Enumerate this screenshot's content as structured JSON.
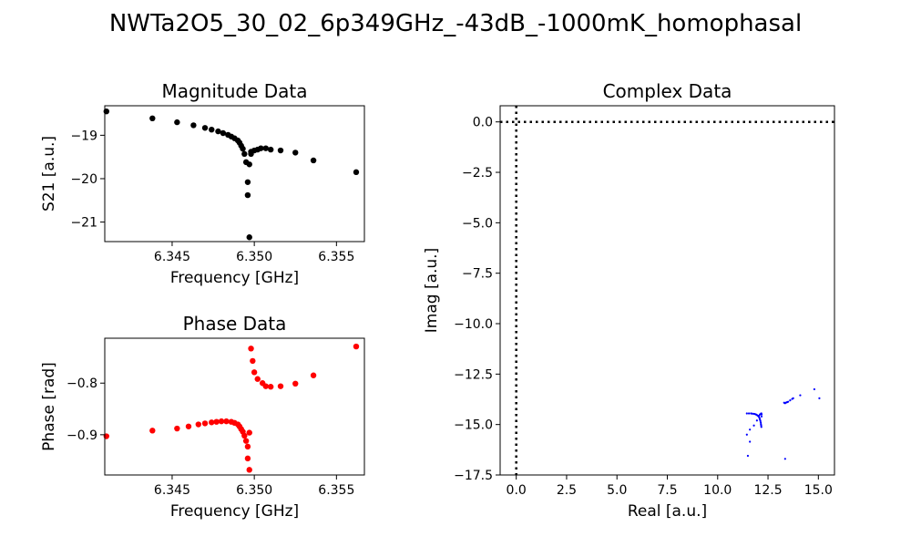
{
  "figure": {
    "title": "NWTa2O5_30_02_6p349GHz_-43dB_-1000mK_homophasal"
  },
  "chart_data": [
    {
      "id": "magnitude",
      "type": "scatter",
      "title": "Magnitude Data",
      "xlabel": "Frequency [GHz]",
      "ylabel": "S21 [a.u.]",
      "xlim": [
        6.3409,
        6.3567
      ],
      "ylim": [
        -21.45,
        -18.32
      ],
      "xticks": [
        6.345,
        6.35,
        6.355
      ],
      "xtick_labels": [
        "6.345",
        "6.350",
        "6.355"
      ],
      "yticks": [
        -19,
        -20,
        -21
      ],
      "ytick_labels": [
        "−19",
        "−20",
        "−21"
      ],
      "color": "#000000",
      "grid": false,
      "x": [
        6.341,
        6.3438,
        6.3453,
        6.3463,
        6.347,
        6.3474,
        6.3478,
        6.3481,
        6.3484,
        6.3486,
        6.3488,
        6.349,
        6.3491,
        6.3492,
        6.3493,
        6.3494,
        6.3495,
        6.3496,
        6.3496,
        6.3497,
        6.3497,
        6.3498,
        6.3498,
        6.35,
        6.3502,
        6.3504,
        6.3507,
        6.351,
        6.3516,
        6.3525,
        6.3536,
        6.3562
      ],
      "y": [
        -18.45,
        -18.61,
        -18.7,
        -18.77,
        -18.83,
        -18.87,
        -18.91,
        -18.95,
        -18.99,
        -19.03,
        -19.07,
        -19.12,
        -19.17,
        -19.24,
        -19.31,
        -19.43,
        -19.62,
        -20.08,
        -20.38,
        -21.35,
        -19.67,
        -19.43,
        -19.38,
        -19.35,
        -19.33,
        -19.3,
        -19.3,
        -19.33,
        -19.35,
        -19.4,
        -19.58,
        -19.85
      ]
    },
    {
      "id": "phase",
      "type": "scatter",
      "title": "Phase Data",
      "xlabel": "Frequency [GHz]",
      "ylabel": "Phase [rad]",
      "xlim": [
        6.3409,
        6.3567
      ],
      "ylim": [
        -0.978,
        -0.713
      ],
      "xticks": [
        6.345,
        6.35,
        6.355
      ],
      "xtick_labels": [
        "6.345",
        "6.350",
        "6.355"
      ],
      "yticks": [
        -0.8,
        -0.9
      ],
      "ytick_labels": [
        "−0.8",
        "−0.9"
      ],
      "color": "#ff0000",
      "grid": false,
      "x": [
        6.341,
        6.3438,
        6.3453,
        6.346,
        6.3466,
        6.347,
        6.3474,
        6.3477,
        6.348,
        6.3483,
        6.3486,
        6.3488,
        6.349,
        6.3491,
        6.3492,
        6.3493,
        6.3494,
        6.3495,
        6.3496,
        6.3496,
        6.3497,
        6.3497,
        6.3498,
        6.3499,
        6.35,
        6.3502,
        6.3505,
        6.3507,
        6.351,
        6.3516,
        6.3525,
        6.3536,
        6.3562
      ],
      "y": [
        -0.903,
        -0.892,
        -0.888,
        -0.884,
        -0.88,
        -0.878,
        -0.876,
        -0.875,
        -0.874,
        -0.874,
        -0.875,
        -0.877,
        -0.88,
        -0.884,
        -0.889,
        -0.894,
        -0.902,
        -0.912,
        -0.923,
        -0.946,
        -0.968,
        -0.896,
        -0.733,
        -0.757,
        -0.779,
        -0.792,
        -0.8,
        -0.806,
        -0.807,
        -0.806,
        -0.801,
        -0.785,
        -0.729
      ]
    },
    {
      "id": "complex",
      "type": "scatter",
      "title": "Complex Data",
      "xlabel": "Real [a.u.]",
      "ylabel": "Imag [a.u.]",
      "xlim": [
        -0.8,
        15.8
      ],
      "ylim": [
        -17.5,
        0.8
      ],
      "xticks": [
        0,
        2.5,
        5,
        7.5,
        10,
        12.5,
        15
      ],
      "xtick_labels": [
        "0.0",
        "2.5",
        "5.0",
        "7.5",
        "10.0",
        "12.5",
        "15.0"
      ],
      "yticks": [
        0,
        -2.5,
        -5,
        -7.5,
        -10,
        -12.5,
        -15,
        -17.5
      ],
      "ytick_labels": [
        "0.0",
        "−2.5",
        "−5.0",
        "−7.5",
        "−10.0",
        "−12.5",
        "−15.0",
        "−17.5"
      ],
      "color": "#0000ff",
      "grid": false,
      "reference_lines": {
        "x": 0,
        "y": 0,
        "style": "dotted"
      },
      "x": [
        11.45,
        11.55,
        11.65,
        11.72,
        11.8,
        11.85,
        11.9,
        11.95,
        12.0,
        12.05,
        12.08,
        12.1,
        12.12,
        12.14,
        12.15,
        12.16,
        12.17,
        12.18,
        12.18,
        12.17,
        12.15,
        12.1,
        12.05,
        11.95,
        11.8,
        11.6,
        11.45,
        11.6,
        11.5,
        13.3,
        13.35,
        13.4,
        13.45,
        13.5,
        13.6,
        13.7,
        13.75,
        14.1,
        14.8,
        15.05,
        13.35
      ],
      "y": [
        -14.45,
        -14.45,
        -14.45,
        -14.46,
        -14.47,
        -14.48,
        -14.5,
        -14.53,
        -14.57,
        -14.62,
        -14.68,
        -14.75,
        -14.82,
        -14.9,
        -14.98,
        -15.05,
        -15.12,
        -14.6,
        -14.5,
        -14.45,
        -14.46,
        -14.5,
        -14.56,
        -14.8,
        -15.05,
        -15.25,
        -15.5,
        -15.85,
        -16.55,
        -13.92,
        -13.94,
        -13.91,
        -13.89,
        -13.87,
        -13.8,
        -13.73,
        -13.7,
        -13.55,
        -13.25,
        -13.7,
        -16.7
      ]
    }
  ]
}
